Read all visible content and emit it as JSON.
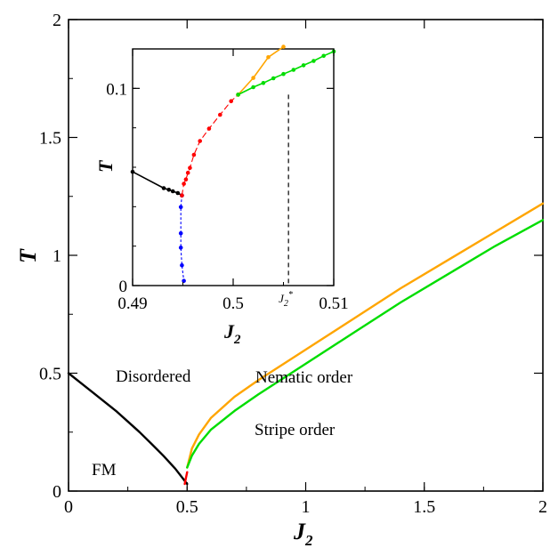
{
  "chart_data": [
    {
      "type": "line",
      "title": "",
      "xlabel": {
        "base": "J",
        "sub": "2"
      },
      "ylabel": "T",
      "xlim": [
        0,
        2
      ],
      "ylim": [
        0,
        2
      ],
      "xticks": [
        "0",
        "0.5",
        "1",
        "1.5",
        "2"
      ],
      "yticks": [
        "0",
        "0.5",
        "1",
        "1.5",
        "2"
      ],
      "grid": false,
      "annotations": [
        "FM",
        "Disordered",
        "Nematic order",
        "Stripe order"
      ],
      "series": [
        {
          "color": "#000000",
          "x": [
            0,
            0.05,
            0.1,
            0.15,
            0.2,
            0.25,
            0.3,
            0.35,
            0.4,
            0.45,
            0.5
          ],
          "y": [
            0.5,
            0.46,
            0.42,
            0.38,
            0.34,
            0.295,
            0.25,
            0.2,
            0.15,
            0.095,
            0.03
          ]
        },
        {
          "color": "#ff0000",
          "x": [
            0.49,
            0.495,
            0.5
          ],
          "y": [
            0.03,
            0.055,
            0.08
          ]
        },
        {
          "color": "#ffa500",
          "x": [
            0.5,
            0.52,
            0.55,
            0.6,
            0.7,
            0.8,
            1.0,
            1.2,
            1.4,
            1.6,
            1.8,
            2.0
          ],
          "y": [
            0.1,
            0.18,
            0.24,
            0.31,
            0.4,
            0.47,
            0.6,
            0.73,
            0.86,
            0.98,
            1.1,
            1.22
          ]
        },
        {
          "color": "#00dd00",
          "x": [
            0.5,
            0.52,
            0.55,
            0.6,
            0.7,
            0.8,
            1.0,
            1.2,
            1.4,
            1.6,
            1.8,
            2.0
          ],
          "y": [
            0.1,
            0.15,
            0.2,
            0.26,
            0.34,
            0.41,
            0.54,
            0.67,
            0.8,
            0.92,
            1.04,
            1.15
          ]
        }
      ]
    },
    {
      "type": "line",
      "title": "",
      "xlabel": {
        "base": "J",
        "sub": "2"
      },
      "ylabel": "T",
      "xlim": [
        0.49,
        0.51
      ],
      "ylim": [
        0,
        0.12
      ],
      "xticks": [
        "0.49",
        "0.5",
        "0.51"
      ],
      "yticks": [
        "0",
        "0.1"
      ],
      "special_tick": {
        "x": 0.5055,
        "base": "J",
        "sub": "2",
        "sup": "*"
      },
      "grid": false,
      "series": [
        {
          "color": "#000000",
          "style": "solid",
          "x": [
            0.49,
            0.4931,
            0.4936,
            0.494,
            0.4945,
            0.4949
          ],
          "y": [
            0.0577,
            0.0494,
            0.0486,
            0.0478,
            0.0469,
            0.0457
          ]
        },
        {
          "color": "#0000ff",
          "style": "dotted",
          "x": [
            0.4949,
            0.4948,
            0.4948,
            0.4948,
            0.4949,
            0.4951
          ],
          "y": [
            0.0457,
            0.0398,
            0.0265,
            0.0192,
            0.0103,
            0.0024
          ]
        },
        {
          "color": "#ff0000",
          "style": "dashed",
          "x": [
            0.4949,
            0.4951,
            0.4953,
            0.4955,
            0.4957,
            0.4961,
            0.4967,
            0.4976,
            0.4987,
            0.4998,
            0.5005
          ],
          "y": [
            0.0457,
            0.0516,
            0.0538,
            0.0572,
            0.0597,
            0.0663,
            0.0733,
            0.0796,
            0.0866,
            0.0935,
            0.0968
          ]
        },
        {
          "color": "#ffa500",
          "style": "solid",
          "x": [
            0.5005,
            0.502,
            0.5035,
            0.505
          ],
          "y": [
            0.0968,
            0.1053,
            0.1158,
            0.1211
          ]
        },
        {
          "color": "#00dd00",
          "style": "solid",
          "x": [
            0.5005,
            0.502,
            0.503,
            0.504,
            0.505,
            0.506,
            0.507,
            0.508,
            0.509,
            0.51
          ],
          "y": [
            0.0968,
            0.1006,
            0.1027,
            0.1051,
            0.1073,
            0.1094,
            0.1117,
            0.1139,
            0.1165,
            0.1187
          ]
        }
      ]
    }
  ]
}
